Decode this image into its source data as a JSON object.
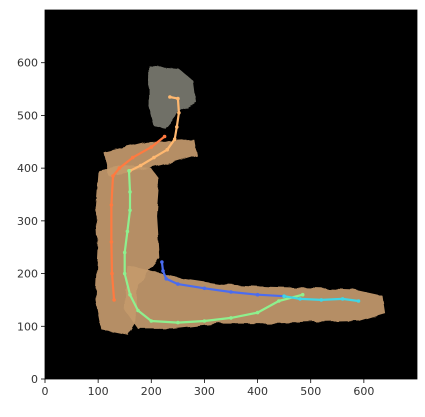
{
  "chart_data": {
    "type": "map-trajectory",
    "xlim": [
      0,
      700
    ],
    "ylim": [
      0,
      700
    ],
    "x_ticks": [
      0,
      100,
      200,
      300,
      400,
      500,
      600
    ],
    "y_ticks": [
      0,
      100,
      200,
      300,
      400,
      500,
      600
    ],
    "tick_labels_x": [
      "0",
      "100",
      "200",
      "300",
      "400",
      "500",
      "600"
    ],
    "tick_labels_y": [
      "0",
      "100",
      "200",
      "300",
      "400",
      "500",
      "600"
    ],
    "background_color": "#000000",
    "floor_color": "#c49a6c",
    "trajectories": [
      {
        "color": "#ffb870",
        "points": [
          [
            235,
            535
          ],
          [
            250,
            532
          ],
          [
            252,
            505
          ],
          [
            248,
            478
          ],
          [
            244,
            455
          ],
          [
            230,
            435
          ],
          [
            205,
            420
          ],
          [
            180,
            405
          ],
          [
            160,
            395
          ]
        ]
      },
      {
        "color": "#ff7a40",
        "points": [
          [
            225,
            460
          ],
          [
            200,
            440
          ],
          [
            165,
            420
          ],
          [
            140,
            400
          ],
          [
            128,
            385
          ],
          [
            125,
            330
          ],
          [
            125,
            260
          ],
          [
            126,
            200
          ],
          [
            130,
            150
          ]
        ]
      },
      {
        "color": "#8ef08e",
        "points": [
          [
            158,
            395
          ],
          [
            160,
            355
          ],
          [
            160,
            320
          ],
          [
            155,
            280
          ],
          [
            150,
            240
          ],
          [
            150,
            200
          ],
          [
            160,
            160
          ],
          [
            175,
            130
          ],
          [
            200,
            110
          ],
          [
            250,
            107
          ],
          [
            300,
            110
          ],
          [
            350,
            116
          ],
          [
            400,
            126
          ],
          [
            440,
            148
          ],
          [
            485,
            160
          ]
        ]
      },
      {
        "color": "#4a6cf0",
        "points": [
          [
            220,
            222
          ],
          [
            222,
            205
          ],
          [
            228,
            190
          ],
          [
            250,
            180
          ],
          [
            300,
            172
          ],
          [
            350,
            165
          ],
          [
            400,
            160
          ],
          [
            450,
            157
          ]
        ]
      },
      {
        "color": "#3fd6e6",
        "points": [
          [
            450,
            157
          ],
          [
            480,
            152
          ],
          [
            520,
            150
          ],
          [
            560,
            152
          ],
          [
            590,
            148
          ]
        ]
      }
    ]
  }
}
